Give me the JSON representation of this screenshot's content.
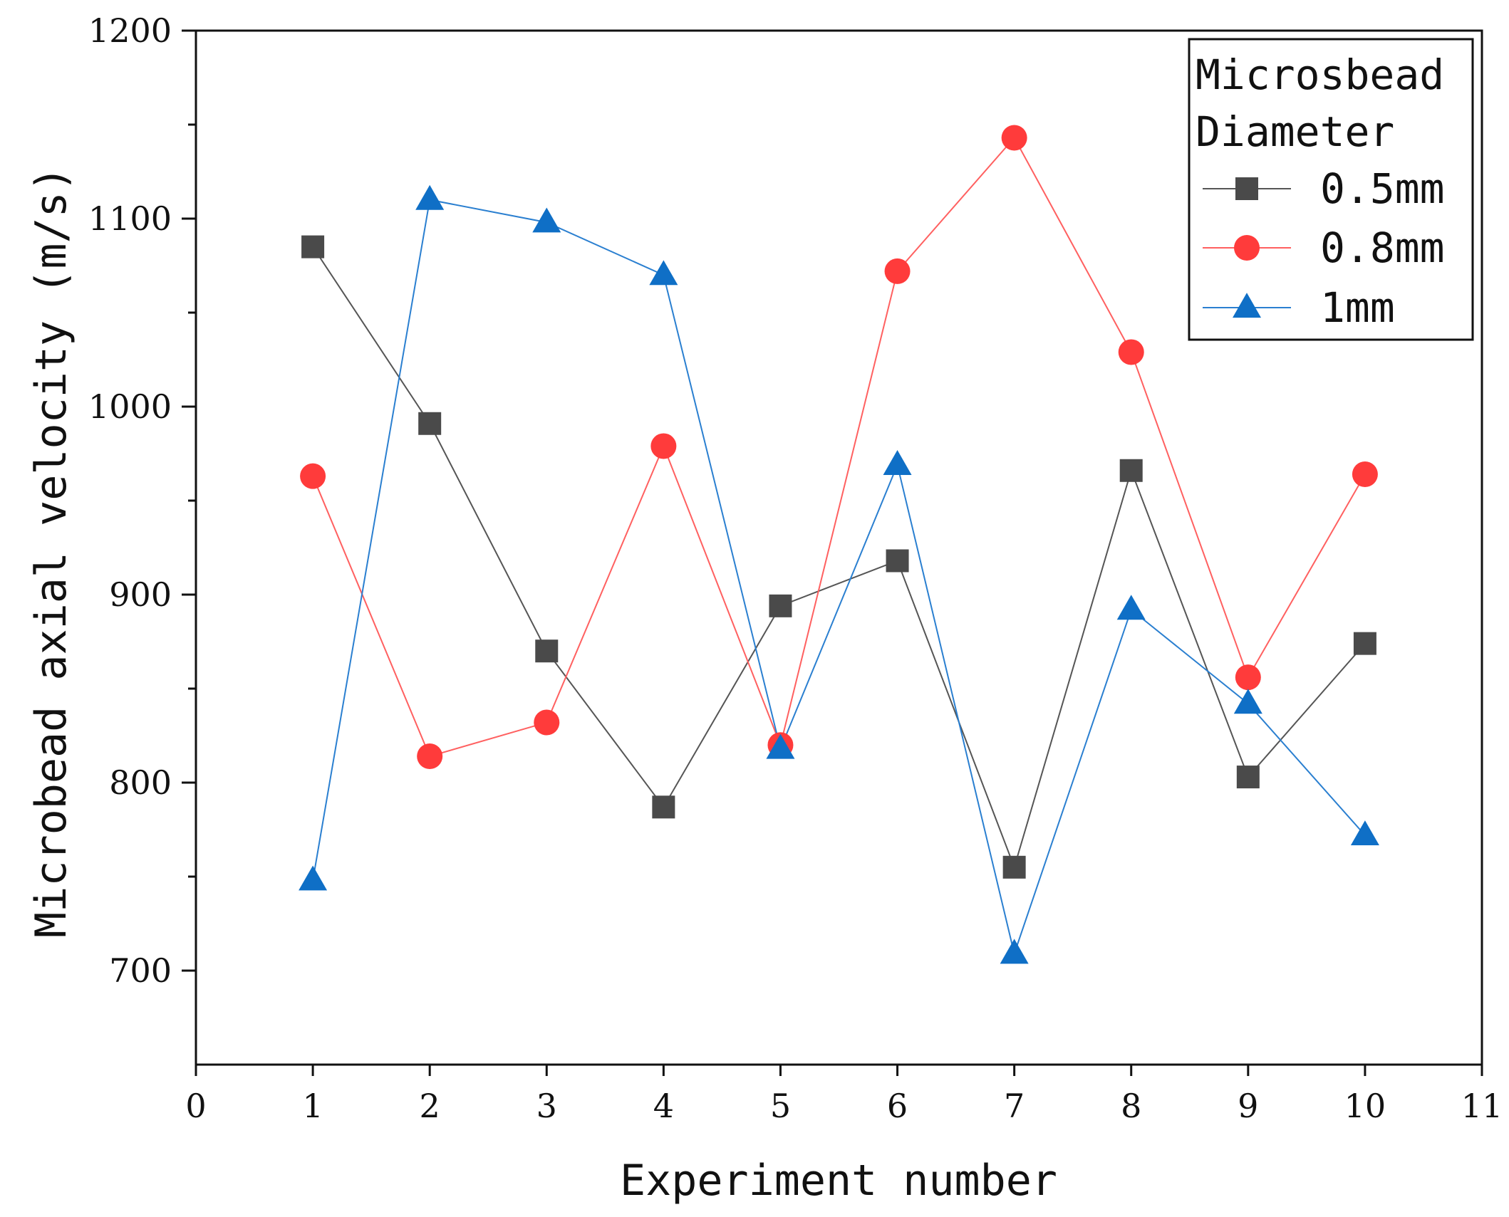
{
  "chart_data": {
    "type": "line",
    "title": "",
    "xlabel": "Experiment number",
    "ylabel": "Microbead axial velocity (m/s)",
    "xlim": [
      0,
      11
    ],
    "ylim": [
      650,
      1200
    ],
    "x_ticks": [
      0,
      1,
      2,
      3,
      4,
      5,
      6,
      7,
      8,
      9,
      10,
      11
    ],
    "y_ticks": [
      700,
      800,
      900,
      1000,
      1100,
      1200
    ],
    "y_minor_ticks": [
      750,
      850,
      950,
      1050,
      1150
    ],
    "grid": false,
    "legend": {
      "title_line1": "Microsbead",
      "title_line2": "Diameter",
      "placement": "top-right"
    },
    "x": [
      1,
      2,
      3,
      4,
      5,
      6,
      7,
      8,
      9,
      10
    ],
    "series": [
      {
        "name": "0.5mm",
        "marker": "square",
        "color": "#4a4a4a",
        "line_color": "#555555",
        "values": [
          1085,
          991,
          870,
          787,
          894,
          918,
          755,
          966,
          803,
          874
        ]
      },
      {
        "name": "0.8mm",
        "marker": "circle",
        "color": "#ff3b3b",
        "line_color": "#ff6060",
        "values": [
          963,
          814,
          832,
          979,
          820,
          1072,
          1143,
          1029,
          856,
          964
        ]
      },
      {
        "name": "1mm",
        "marker": "triangle",
        "color": "#0f6fc6",
        "line_color": "#2a7fd0",
        "values": [
          748,
          1110,
          1098,
          1070,
          818,
          969,
          709,
          892,
          842,
          772
        ]
      }
    ]
  }
}
